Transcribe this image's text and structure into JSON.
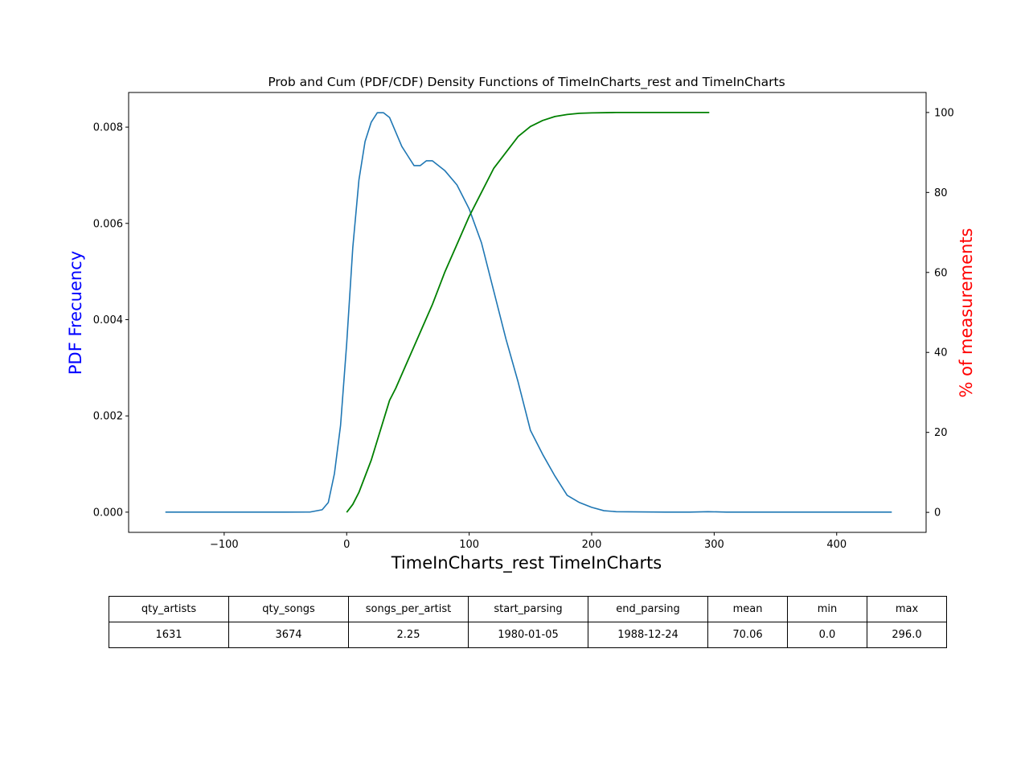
{
  "chart_data": {
    "type": "line",
    "title": "Prob and Cum (PDF/CDF) Density Functions of TimeInCharts_rest and TimeInCharts",
    "xlabel": "TimeInCharts_rest TimeInCharts",
    "ylabel": "PDF Frecuency",
    "ylabel_right": "% of measurements",
    "xlim": [
      -178,
      473
    ],
    "ylim": [
      -0.00042,
      0.00872
    ],
    "ylim_right": [
      -5,
      105
    ],
    "xticks": [
      -100,
      0,
      100,
      200,
      300,
      400
    ],
    "xtick_labels": [
      "−100",
      "0",
      "100",
      "200",
      "300",
      "400"
    ],
    "yticks": [
      0.0,
      0.002,
      0.004,
      0.006,
      0.008
    ],
    "ytick_labels": [
      "0.000",
      "0.002",
      "0.004",
      "0.006",
      "0.008"
    ],
    "yticks_right": [
      0,
      20,
      40,
      60,
      80,
      100
    ],
    "ytick_labels_right": [
      "0",
      "20",
      "40",
      "60",
      "80",
      "100"
    ],
    "grid": false,
    "colors": {
      "pdf": "#1f77b4",
      "cdf": "#008000",
      "ylabel_left": "#0000ff",
      "ylabel_right": "#ff0000"
    },
    "series": [
      {
        "axis": "left",
        "x": [
          -148,
          -100,
          -50,
          -30,
          -20,
          -15,
          -10,
          -5,
          0,
          5,
          10,
          15,
          20,
          25,
          30,
          35,
          40,
          45,
          50,
          55,
          60,
          65,
          70,
          75,
          80,
          90,
          100,
          110,
          120,
          130,
          140,
          150,
          160,
          170,
          180,
          190,
          200,
          210,
          220,
          240,
          260,
          280,
          295,
          310,
          340,
          380,
          420,
          445
        ],
        "y": [
          0.0,
          0.0,
          0.0,
          2e-06,
          5e-05,
          0.0002,
          0.0008,
          0.0018,
          0.0035,
          0.0055,
          0.0069,
          0.0077,
          0.0081,
          0.0083,
          0.0083,
          0.0082,
          0.0079,
          0.0076,
          0.0074,
          0.0072,
          0.0072,
          0.0073,
          0.0073,
          0.0072,
          0.0071,
          0.0068,
          0.0063,
          0.0056,
          0.0046,
          0.0036,
          0.0027,
          0.0017,
          0.0012,
          0.00075,
          0.00035,
          0.0002,
          0.0001,
          3e-05,
          1e-05,
          5e-06,
          0.0,
          0.0,
          1e-05,
          0.0,
          0.0,
          0.0,
          0.0,
          0.0
        ]
      },
      {
        "axis": "right",
        "x": [
          0,
          5,
          10,
          15,
          20,
          25,
          30,
          35,
          40,
          50,
          60,
          70,
          80,
          90,
          100,
          110,
          120,
          130,
          140,
          150,
          160,
          170,
          180,
          190,
          200,
          220,
          250,
          296
        ],
        "y": [
          0,
          2,
          5,
          9,
          13,
          18,
          23,
          28,
          31,
          38,
          45,
          52,
          60,
          67,
          74,
          80,
          86,
          90,
          94,
          96.5,
          98,
          99,
          99.5,
          99.8,
          99.9,
          100,
          100,
          100
        ]
      }
    ],
    "table": {
      "headers": [
        "qty_artists",
        "qty_songs",
        "songs_per_artist",
        "start_parsing",
        "end_parsing",
        "mean",
        "min",
        "max"
      ],
      "rows": [
        [
          "1631",
          "3674",
          "2.25",
          "1980-01-05",
          "1988-12-24",
          "70.06",
          "0.0",
          "296.0"
        ]
      ]
    }
  }
}
